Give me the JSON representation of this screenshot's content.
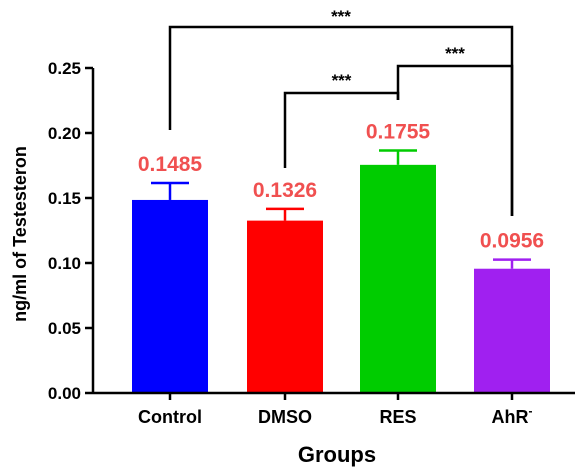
{
  "chart_data": {
    "type": "bar",
    "title": "",
    "xlabel": "Groups",
    "ylabel": "ng/ml of Testesteron",
    "ylim": [
      0,
      0.25
    ],
    "yticks": [
      "0.00",
      "0.05",
      "0.10",
      "0.15",
      "0.20",
      "0.25"
    ],
    "categories": [
      "Control",
      "DMSO",
      "RES",
      "AhR"
    ],
    "category_superscripts": [
      "",
      "",
      "",
      "-"
    ],
    "values": [
      0.1485,
      0.1326,
      0.1755,
      0.0956
    ],
    "value_labels": [
      "0.1485",
      "0.1326",
      "0.1755",
      "0.0956"
    ],
    "errors": [
      0.013,
      0.009,
      0.011,
      0.007
    ],
    "colors": [
      "#0000ff",
      "#ff0000",
      "#00cc00",
      "#a020f0"
    ],
    "data_label_color": "#f05050",
    "grid": false,
    "significance": [
      {
        "from": "Control",
        "to": "AhR",
        "label": "***"
      },
      {
        "from": "DMSO",
        "to": "RES",
        "label": "***"
      },
      {
        "from": "RES",
        "to": "AhR",
        "label": "***"
      }
    ]
  }
}
